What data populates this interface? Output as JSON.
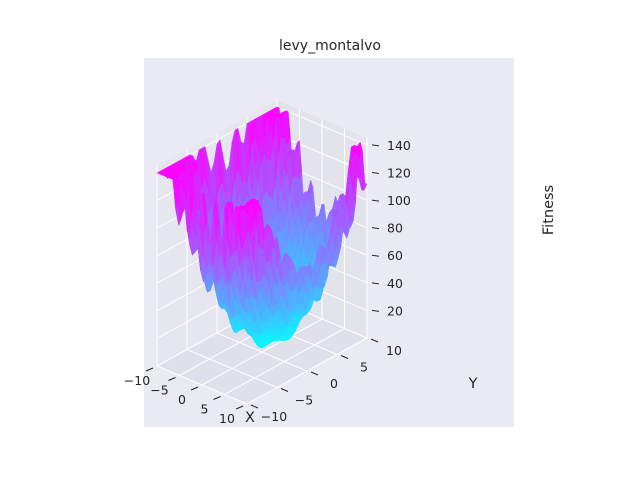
{
  "chart_data": {
    "type": "surface",
    "title": "levy_montalvo",
    "xlabel": "X",
    "ylabel": "Y",
    "zlabel": "Fitness",
    "x_ticks": [
      "−10",
      "−5",
      "0",
      "5",
      "10"
    ],
    "y_ticks": [
      "−10",
      "−5",
      "0",
      "5",
      "10"
    ],
    "z_ticks": [
      "20",
      "40",
      "60",
      "80",
      "100",
      "120",
      "140"
    ],
    "xlim": [
      -10,
      10
    ],
    "ylim": [
      -10,
      10
    ],
    "zlim": [
      0,
      145
    ],
    "colormap": "cool",
    "colormap_low": "#00ffff",
    "colormap_high": "#ff00ff",
    "panel_color": "#eaeaf2",
    "grid": true
  }
}
